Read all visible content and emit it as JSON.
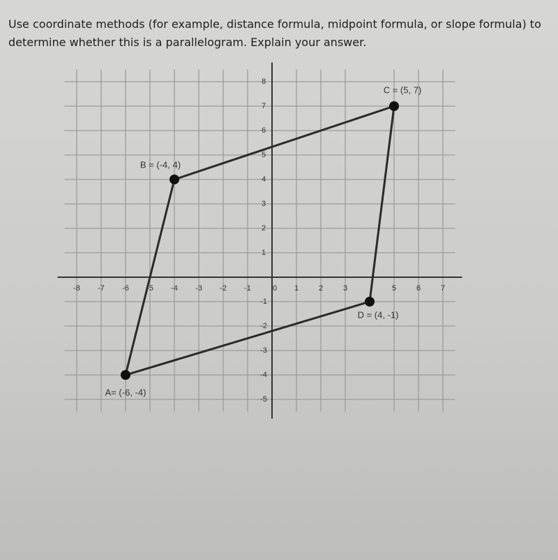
{
  "question": [
    "Use coordinate methods (for example, distance formula, midpoint formula, or slope formula) to",
    "determine whether this is a parallelogram. Explain your answer."
  ],
  "chart_data": {
    "type": "polygon",
    "series": [
      {
        "x": [
          -6,
          -4,
          5,
          4
        ],
        "values": [
          -4,
          4,
          7,
          -1
        ],
        "point_labels": [
          "A= (-6, -4)",
          "B = (-4, 4)",
          "C = (5, 7)",
          "D = (4, -1)"
        ],
        "color": "#2a2a2a"
      }
    ],
    "xlim": [
      -8.5,
      7.5
    ],
    "ylim": [
      -5.5,
      8.5
    ],
    "xticks": [
      -8,
      -7,
      -6,
      -5,
      -4,
      -3,
      -2,
      -1,
      0,
      1,
      2,
      3,
      5,
      6,
      7
    ],
    "yticks": [
      -5,
      -4,
      -3,
      -2,
      -1,
      1,
      2,
      3,
      4,
      5,
      6,
      7,
      8
    ],
    "grid": true
  }
}
